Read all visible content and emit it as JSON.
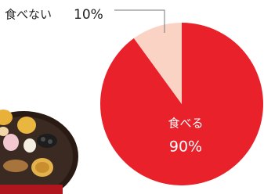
{
  "chart_data": {
    "type": "pie",
    "categories": [
      "食べる",
      "食べない"
    ],
    "values": [
      90,
      10
    ],
    "value_labels": [
      "90%",
      "10%"
    ],
    "colors": [
      "#e8212a",
      "#fbd3c4"
    ]
  }
}
